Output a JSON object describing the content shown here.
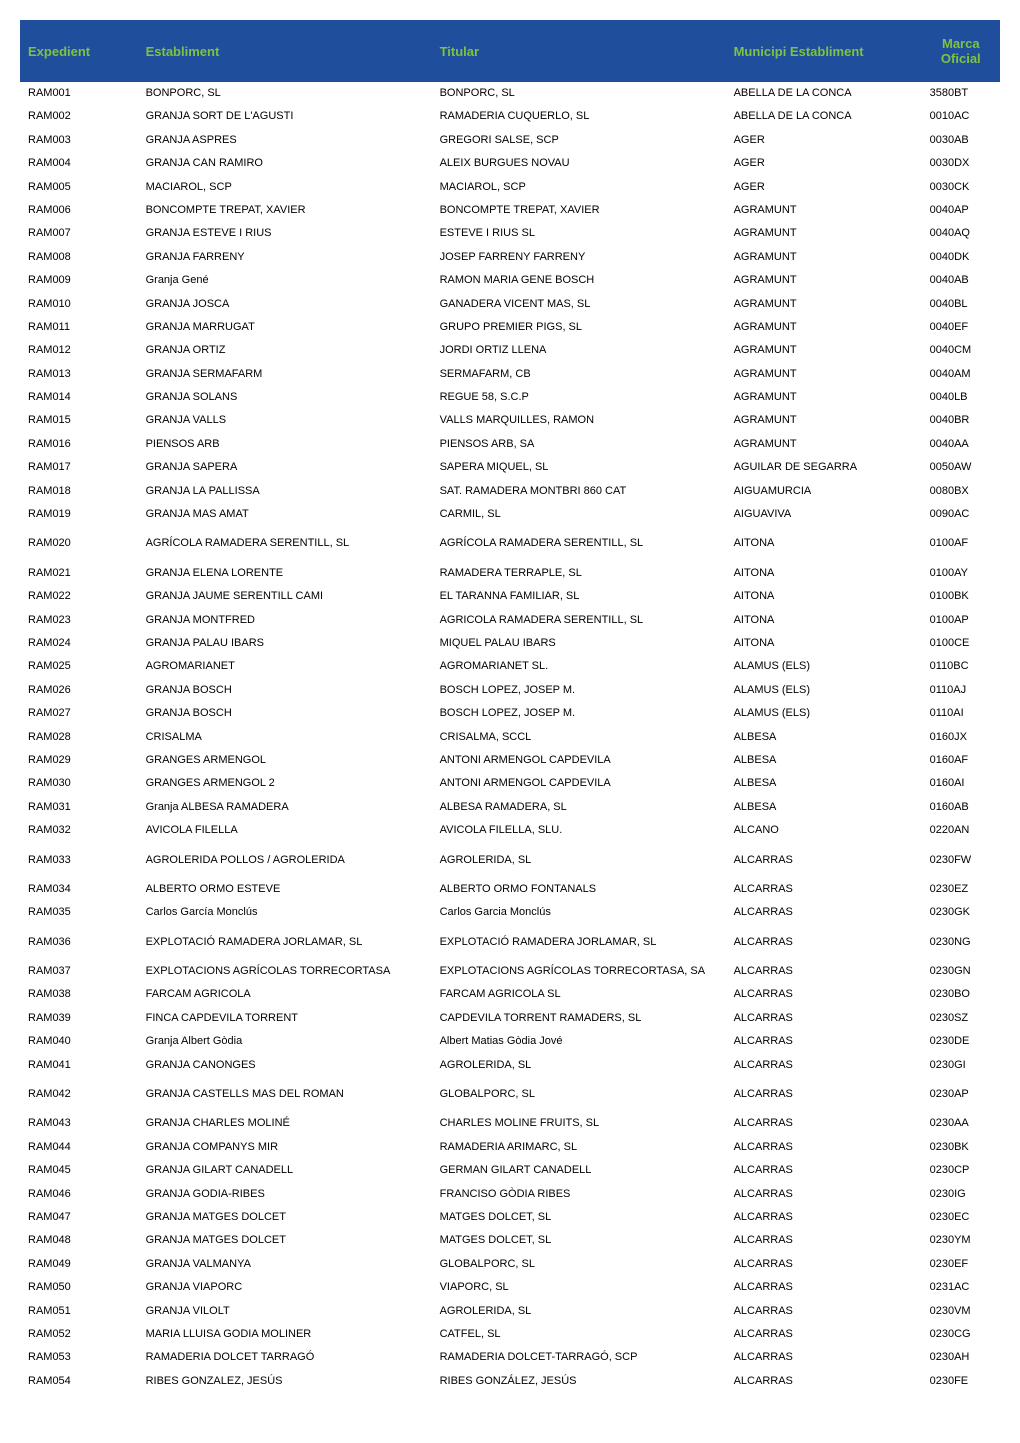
{
  "headers": {
    "expedient": "Expedient",
    "establiment": "Establiment",
    "titular": "Titular",
    "municipi": "Municipi Establiment",
    "marca": "Marca Oficial"
  },
  "rows": [
    {
      "expedient": "RAM001",
      "establiment": "BONPORC, SL",
      "titular": "BONPORC, SL",
      "municipi": "ABELLA DE LA CONCA",
      "marca": "3580BT"
    },
    {
      "expedient": "RAM002",
      "establiment": "GRANJA SORT DE L'AGUSTI",
      "titular": "RAMADERIA CUQUERLO, SL",
      "municipi": "ABELLA DE LA CONCA",
      "marca": "0010AC"
    },
    {
      "expedient": "RAM003",
      "establiment": "GRANJA ASPRES",
      "titular": "GREGORI SALSE, SCP",
      "municipi": "AGER",
      "marca": "0030AB"
    },
    {
      "expedient": "RAM004",
      "establiment": "GRANJA CAN RAMIRO",
      "titular": "ALEIX BURGUES NOVAU",
      "municipi": "AGER",
      "marca": "0030DX"
    },
    {
      "expedient": "RAM005",
      "establiment": "MACIAROL, SCP",
      "titular": "MACIAROL, SCP",
      "municipi": "AGER",
      "marca": "0030CK"
    },
    {
      "expedient": "RAM006",
      "establiment": "BONCOMPTE TREPAT, XAVIER",
      "titular": "BONCOMPTE TREPAT, XAVIER",
      "municipi": "AGRAMUNT",
      "marca": "0040AP"
    },
    {
      "expedient": "RAM007",
      "establiment": "GRANJA ESTEVE I RIUS",
      "titular": "ESTEVE I RIUS SL",
      "municipi": "AGRAMUNT",
      "marca": "0040AQ"
    },
    {
      "expedient": "RAM008",
      "establiment": "GRANJA FARRENY",
      "titular": "JOSEP FARRENY FARRENY",
      "municipi": "AGRAMUNT",
      "marca": "0040DK"
    },
    {
      "expedient": "RAM009",
      "establiment": "Granja Gené",
      "titular": "RAMON MARIA GENE BOSCH",
      "municipi": "AGRAMUNT",
      "marca": "0040AB"
    },
    {
      "expedient": "RAM010",
      "establiment": "GRANJA JOSCA",
      "titular": "GANADERA VICENT MAS, SL",
      "municipi": "AGRAMUNT",
      "marca": "0040BL"
    },
    {
      "expedient": "RAM011",
      "establiment": "GRANJA MARRUGAT",
      "titular": "GRUPO PREMIER PIGS, SL",
      "municipi": "AGRAMUNT",
      "marca": "0040EF"
    },
    {
      "expedient": "RAM012",
      "establiment": "GRANJA ORTIZ",
      "titular": "JORDI ORTIZ LLENA",
      "municipi": "AGRAMUNT",
      "marca": "0040CM"
    },
    {
      "expedient": "RAM013",
      "establiment": "GRANJA SERMAFARM",
      "titular": "SERMAFARM, CB",
      "municipi": "AGRAMUNT",
      "marca": "0040AM"
    },
    {
      "expedient": "RAM014",
      "establiment": "GRANJA SOLANS",
      "titular": "REGUE 58, S.C.P",
      "municipi": "AGRAMUNT",
      "marca": "0040LB"
    },
    {
      "expedient": "RAM015",
      "establiment": "GRANJA VALLS",
      "titular": "VALLS MARQUILLES, RAMON",
      "municipi": "AGRAMUNT",
      "marca": "0040BR"
    },
    {
      "expedient": "RAM016",
      "establiment": "PIENSOS ARB",
      "titular": "PIENSOS ARB, SA",
      "municipi": "AGRAMUNT",
      "marca": "0040AA"
    },
    {
      "expedient": "RAM017",
      "establiment": "GRANJA SAPERA",
      "titular": "SAPERA MIQUEL, SL",
      "municipi": "AGUILAR DE SEGARRA",
      "marca": "0050AW"
    },
    {
      "expedient": "RAM018",
      "establiment": "GRANJA LA PALLISSA",
      "titular": "SAT. RAMADERA MONTBRI 860 CAT",
      "municipi": "AIGUAMURCIA",
      "marca": "0080BX"
    },
    {
      "expedient": "RAM019",
      "establiment": "GRANJA MAS AMAT",
      "titular": "CARMIL, SL",
      "municipi": "AIGUAVIVA",
      "marca": "0090AC"
    },
    {
      "expedient": "RAM020",
      "establiment": "AGRÍCOLA RAMADERA SERENTILL, SL",
      "titular": "AGRÍCOLA RAMADERA SERENTILL, SL",
      "municipi": "AITONA",
      "marca": "0100AF",
      "spacer": true
    },
    {
      "expedient": "RAM021",
      "establiment": "GRANJA ELENA LORENTE",
      "titular": "RAMADERA TERRAPLE, SL",
      "municipi": "AITONA",
      "marca": "0100AY",
      "spacer": true
    },
    {
      "expedient": "RAM022",
      "establiment": "GRANJA JAUME SERENTILL CAMI",
      "titular": "EL TARANNA FAMILIAR, SL",
      "municipi": "AITONA",
      "marca": "0100BK"
    },
    {
      "expedient": "RAM023",
      "establiment": "GRANJA MONTFRED",
      "titular": "AGRICOLA RAMADERA SERENTILL, SL",
      "municipi": "AITONA",
      "marca": "0100AP"
    },
    {
      "expedient": "RAM024",
      "establiment": "GRANJA PALAU IBARS",
      "titular": "MIQUEL PALAU IBARS",
      "municipi": "AITONA",
      "marca": "0100CE"
    },
    {
      "expedient": "RAM025",
      "establiment": "AGROMARIANET",
      "titular": "AGROMARIANET SL.",
      "municipi": "ALAMUS (ELS)",
      "marca": "0110BC"
    },
    {
      "expedient": "RAM026",
      "establiment": "GRANJA BOSCH",
      "titular": "BOSCH LOPEZ, JOSEP M.",
      "municipi": "ALAMUS (ELS)",
      "marca": "0110AJ"
    },
    {
      "expedient": "RAM027",
      "establiment": "GRANJA BOSCH",
      "titular": "BOSCH LOPEZ, JOSEP M.",
      "municipi": "ALAMUS (ELS)",
      "marca": "0110AI"
    },
    {
      "expedient": "RAM028",
      "establiment": "CRISALMA",
      "titular": "CRISALMA, SCCL",
      "municipi": "ALBESA",
      "marca": "0160JX"
    },
    {
      "expedient": "RAM029",
      "establiment": "GRANGES ARMENGOL",
      "titular": "ANTONI ARMENGOL CAPDEVILA",
      "municipi": "ALBESA",
      "marca": "0160AF"
    },
    {
      "expedient": "RAM030",
      "establiment": "GRANGES ARMENGOL 2",
      "titular": "ANTONI ARMENGOL CAPDEVILA",
      "municipi": "ALBESA",
      "marca": "0160AI"
    },
    {
      "expedient": "RAM031",
      "establiment": "Granja ALBESA RAMADERA",
      "titular": "ALBESA RAMADERA, SL",
      "municipi": "ALBESA",
      "marca": "0160AB"
    },
    {
      "expedient": "RAM032",
      "establiment": "AVICOLA FILELLA",
      "titular": "AVICOLA FILELLA, SLU.",
      "municipi": "ALCANO",
      "marca": "0220AN"
    },
    {
      "expedient": "RAM033",
      "establiment": "AGROLERIDA POLLOS / AGROLERIDA",
      "titular": "AGROLERIDA, SL",
      "municipi": "ALCARRAS",
      "marca": "0230FW",
      "spacer": true
    },
    {
      "expedient": "RAM034",
      "establiment": "ALBERTO ORMO ESTEVE",
      "titular": "ALBERTO ORMO FONTANALS",
      "municipi": "ALCARRAS",
      "marca": "0230EZ",
      "spacer": true
    },
    {
      "expedient": "RAM035",
      "establiment": "Carlos García Monclús",
      "titular": "Carlos Garcia Monclús",
      "municipi": "ALCARRAS",
      "marca": "0230GK"
    },
    {
      "expedient": "RAM036",
      "establiment": "EXPLOTACIÓ RAMADERA JORLAMAR, SL",
      "titular": "EXPLOTACIÓ RAMADERA JORLAMAR, SL",
      "municipi": "ALCARRAS",
      "marca": "0230NG",
      "spacer": true
    },
    {
      "expedient": "RAM037",
      "establiment": "EXPLOTACIONS AGRÍCOLAS TORRECORTASA",
      "titular": "EXPLOTACIONS AGRÍCOLAS TORRECORTASA, SA",
      "municipi": "ALCARRAS",
      "marca": "0230GN",
      "spacer": true
    },
    {
      "expedient": "RAM038",
      "establiment": "FARCAM AGRICOLA",
      "titular": "FARCAM AGRICOLA SL",
      "municipi": "ALCARRAS",
      "marca": "0230BO"
    },
    {
      "expedient": "RAM039",
      "establiment": "FINCA CAPDEVILA TORRENT",
      "titular": "CAPDEVILA TORRENT RAMADERS, SL",
      "municipi": "ALCARRAS",
      "marca": "0230SZ"
    },
    {
      "expedient": "RAM040",
      "establiment": "Granja Albert Gòdia",
      "titular": "Albert Matias Gòdia Jové",
      "municipi": "ALCARRAS",
      "marca": "0230DE"
    },
    {
      "expedient": "RAM041",
      "establiment": "GRANJA CANONGES",
      "titular": "AGROLERIDA, SL",
      "municipi": "ALCARRAS",
      "marca": "0230GI"
    },
    {
      "expedient": "RAM042",
      "establiment": "GRANJA CASTELLS MAS DEL ROMAN",
      "titular": "GLOBALPORC, SL",
      "municipi": "ALCARRAS",
      "marca": "0230AP",
      "spacer": true
    },
    {
      "expedient": "RAM043",
      "establiment": "GRANJA CHARLES MOLINÉ",
      "titular": "CHARLES MOLINE FRUITS, SL",
      "municipi": "ALCARRAS",
      "marca": "0230AA",
      "spacer": true
    },
    {
      "expedient": "RAM044",
      "establiment": "GRANJA COMPANYS MIR",
      "titular": "RAMADERIA ARIMARC, SL",
      "municipi": "ALCARRAS",
      "marca": "0230BK"
    },
    {
      "expedient": "RAM045",
      "establiment": "GRANJA GILART CANADELL",
      "titular": "GERMAN GILART CANADELL",
      "municipi": "ALCARRAS",
      "marca": "0230CP"
    },
    {
      "expedient": "RAM046",
      "establiment": "GRANJA GODIA-RIBES",
      "titular": "FRANCISO GÒDIA RIBES",
      "municipi": "ALCARRAS",
      "marca": "0230IG"
    },
    {
      "expedient": "RAM047",
      "establiment": "GRANJA MATGES DOLCET",
      "titular": "MATGES DOLCET, SL",
      "municipi": "ALCARRAS",
      "marca": "0230EC"
    },
    {
      "expedient": "RAM048",
      "establiment": "GRANJA MATGES DOLCET",
      "titular": "MATGES DOLCET, SL",
      "municipi": "ALCARRAS",
      "marca": "0230YM"
    },
    {
      "expedient": "RAM049",
      "establiment": "GRANJA VALMANYA",
      "titular": "GLOBALPORC, SL",
      "municipi": "ALCARRAS",
      "marca": "0230EF"
    },
    {
      "expedient": "RAM050",
      "establiment": "GRANJA VIAPORC",
      "titular": "VIAPORC, SL",
      "municipi": "ALCARRAS",
      "marca": "0231AC"
    },
    {
      "expedient": "RAM051",
      "establiment": "GRANJA VILOLT",
      "titular": "AGROLERIDA, SL",
      "municipi": "ALCARRAS",
      "marca": "0230VM"
    },
    {
      "expedient": "RAM052",
      "establiment": "MARIA LLUISA GODIA MOLINER",
      "titular": "CATFEL, SL",
      "municipi": "ALCARRAS",
      "marca": "0230CG"
    },
    {
      "expedient": "RAM053",
      "establiment": "RAMADERIA DOLCET TARRAGÓ",
      "titular": "RAMADERIA DOLCET-TARRAGÓ, SCP",
      "municipi": "ALCARRAS",
      "marca": "0230AH"
    },
    {
      "expedient": "RAM054",
      "establiment": "RIBES GONZALEZ, JESÚS",
      "titular": "RIBES GONZÁLEZ, JESÚS",
      "municipi": "ALCARRAS",
      "marca": "0230FE"
    }
  ],
  "styling": {
    "header_bg": "#1f4e9c",
    "header_text_color": "#7fc241",
    "body_text_color": "#000000",
    "body_bg": "#ffffff",
    "header_font_size": 13,
    "body_font_size": 11
  }
}
